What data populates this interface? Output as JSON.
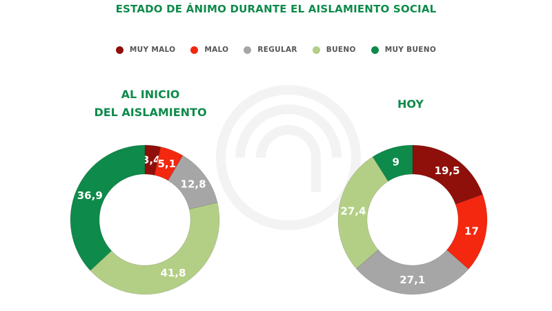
{
  "title": "ESTADO DE ÁNIMO DURANTE EL AISLAMIENTO SOCIAL",
  "legend": [
    {
      "label": "MUY MALO",
      "color": "#8f0f0a"
    },
    {
      "label": "MALO",
      "color": "#f4270f"
    },
    {
      "label": "REGULAR",
      "color": "#a6a6a6"
    },
    {
      "label": "BUENO",
      "color": "#b3cf86"
    },
    {
      "label": "MUY BUENO",
      "color": "#0e8a4a"
    }
  ],
  "charts": [
    {
      "title_line1": "AL INICIO",
      "title_line2": "DEL AISLAMIENTO"
    },
    {
      "title_line1": "HOY",
      "title_line2": ""
    }
  ],
  "chart_data": [
    {
      "type": "pie",
      "title": "AL INICIO DEL AISLAMIENTO",
      "categories": [
        "MUY MALO",
        "MALO",
        "REGULAR",
        "BUENO",
        "MUY BUENO"
      ],
      "values": [
        3.4,
        5.1,
        12.8,
        41.8,
        36.9
      ],
      "labels": [
        "3,4",
        "5,1",
        "12,8",
        "41,8",
        "36,9"
      ],
      "colors": [
        "#8f0f0a",
        "#f4270f",
        "#a6a6a6",
        "#b3cf86",
        "#0e8a4a"
      ],
      "donut": true,
      "legend_position": "top"
    },
    {
      "type": "pie",
      "title": "HOY",
      "categories": [
        "MUY MALO",
        "MALO",
        "REGULAR",
        "BUENO",
        "MUY BUENO"
      ],
      "values": [
        19.5,
        17,
        27.1,
        27.4,
        9
      ],
      "labels": [
        "19,5",
        "17",
        "27,1",
        "27,4",
        "9"
      ],
      "colors": [
        "#8f0f0a",
        "#f4270f",
        "#a6a6a6",
        "#b3cf86",
        "#0e8a4a"
      ],
      "donut": true,
      "legend_position": "top"
    }
  ]
}
